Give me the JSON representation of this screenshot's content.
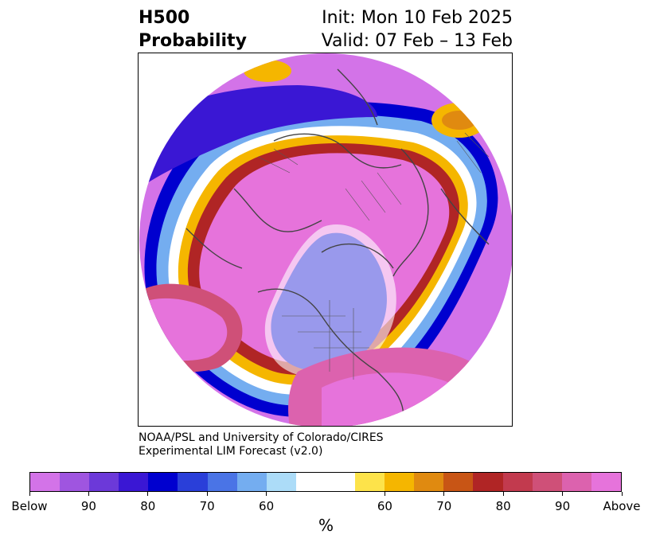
{
  "title": {
    "variable": "H500",
    "product": "Probability",
    "init": "Init: Mon 10 Feb 2025",
    "valid": "Valid: 07 Feb – 13 Feb"
  },
  "credit": {
    "line1": "NOAA/PSL and University of Colorado/CIRES",
    "line2": "Experimental LIM Forecast (v2.0)"
  },
  "colorbar": {
    "unit": "%",
    "colors": [
      "#d373e8",
      "#9f55e0",
      "#6c39d9",
      "#3a17d4",
      "#0000cf",
      "#2a3fd9",
      "#4a74e6",
      "#74adf0",
      "#acdcf8",
      "#ffffff",
      "#ffffff",
      "#fde34a",
      "#f5b600",
      "#e08a10",
      "#c85515",
      "#b02525",
      "#c23a4e",
      "#cf5078",
      "#dc62ae",
      "#e673db"
    ],
    "tick_labels": [
      "Below",
      "90",
      "80",
      "70",
      "60",
      "60",
      "70",
      "80",
      "90",
      "Above"
    ]
  },
  "map": {
    "projection": "north-polar-stereographic",
    "region": "Northern Hemisphere"
  }
}
